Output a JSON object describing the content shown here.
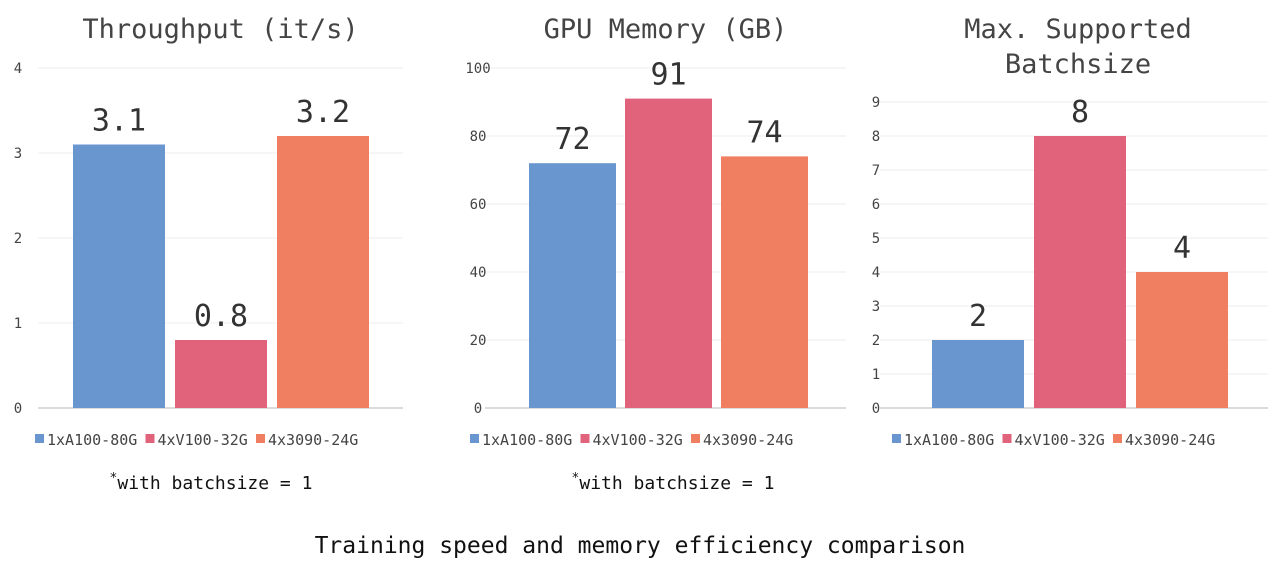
{
  "chart_data": [
    {
      "type": "bar",
      "title": "Throughput (it/s)",
      "categories": [
        "1xA100-80G",
        "4xV100-32G",
        "4x3090-24G"
      ],
      "values": [
        3.1,
        0.8,
        3.2
      ],
      "data_labels": [
        "3.1",
        "0.8",
        "3.2"
      ],
      "ylim": [
        0,
        4
      ],
      "yticks": [
        0,
        1,
        2,
        3,
        4
      ],
      "note_mark": "*",
      "note": "with batchsize = 1",
      "grid": true,
      "legend": "bottom"
    },
    {
      "type": "bar",
      "title": "GPU Memory (GB)",
      "categories": [
        "1xA100-80G",
        "4xV100-32G",
        "4x3090-24G"
      ],
      "values": [
        72,
        91,
        74
      ],
      "data_labels": [
        "72",
        "91",
        "74"
      ],
      "ylim": [
        0,
        100
      ],
      "yticks": [
        0,
        20,
        40,
        60,
        80,
        100
      ],
      "note_mark": "*",
      "note": "with batchsize = 1",
      "grid": true,
      "legend": "bottom"
    },
    {
      "type": "bar",
      "title": "Max. Supported Batchsize",
      "title_lines": [
        "Max. Supported",
        "Batchsize"
      ],
      "categories": [
        "1xA100-80G",
        "4xV100-32G",
        "4x3090-24G"
      ],
      "values": [
        2,
        8,
        4
      ],
      "data_labels": [
        "2",
        "8",
        "4"
      ],
      "ylim": [
        0,
        9
      ],
      "yticks": [
        0,
        1,
        2,
        3,
        4,
        5,
        6,
        7,
        8,
        9
      ],
      "grid": true,
      "legend": "bottom"
    }
  ],
  "colors": [
    "#6a96d0",
    "#e0637b",
    "#f07f61"
  ],
  "caption": "Training speed and memory efficiency comparison"
}
